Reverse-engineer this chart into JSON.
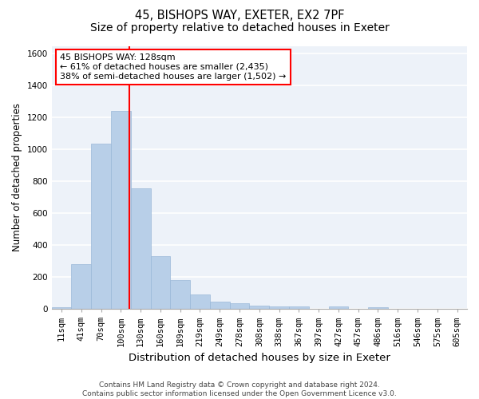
{
  "title1": "45, BISHOPS WAY, EXETER, EX2 7PF",
  "title2": "Size of property relative to detached houses in Exeter",
  "xlabel": "Distribution of detached houses by size in Exeter",
  "ylabel": "Number of detached properties",
  "bar_values": [
    10,
    280,
    1035,
    1240,
    755,
    330,
    180,
    90,
    47,
    35,
    20,
    15,
    15,
    0,
    15,
    0,
    12,
    0,
    0,
    0,
    0
  ],
  "bin_labels": [
    "11sqm",
    "41sqm",
    "70sqm",
    "100sqm",
    "130sqm",
    "160sqm",
    "189sqm",
    "219sqm",
    "249sqm",
    "278sqm",
    "308sqm",
    "338sqm",
    "367sqm",
    "397sqm",
    "427sqm",
    "457sqm",
    "486sqm",
    "516sqm",
    "546sqm",
    "575sqm",
    "605sqm"
  ],
  "bar_color": "#b8cfe8",
  "bar_edge_color": "#9ab8d8",
  "property_value": 128,
  "annotation_text": "45 BISHOPS WAY: 128sqm\n← 61% of detached houses are smaller (2,435)\n38% of semi-detached houses are larger (1,502) →",
  "annotation_box_color": "white",
  "annotation_box_edge_color": "red",
  "vline_color": "red",
  "ylim": [
    0,
    1650
  ],
  "yticks": [
    0,
    200,
    400,
    600,
    800,
    1000,
    1200,
    1400,
    1600
  ],
  "bg_color": "#edf2f9",
  "grid_color": "white",
  "footer_text": "Contains HM Land Registry data © Crown copyright and database right 2024.\nContains public sector information licensed under the Open Government Licence v3.0.",
  "title1_fontsize": 10.5,
  "title2_fontsize": 10,
  "xlabel_fontsize": 9.5,
  "ylabel_fontsize": 8.5,
  "tick_fontsize": 7.5,
  "annotation_fontsize": 8,
  "footer_fontsize": 6.5
}
